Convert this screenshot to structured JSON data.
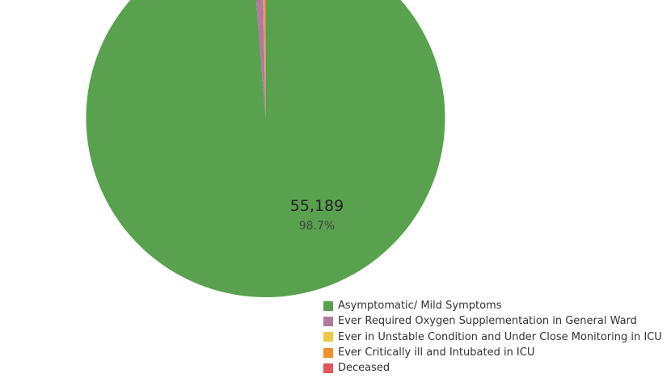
{
  "chart_data": {
    "type": "pie",
    "categories": [
      "Asymptomatic/ Mild Symptoms",
      "Ever Required Oxygen Supplementation in General Ward",
      "Ever in Unstable Condition and Under Close Monitoring in ICU",
      "Ever Critically ill and Intubated in ICU",
      "Deceased"
    ],
    "values": [
      55189,
      540,
      40,
      100,
      47
    ],
    "colors": [
      "#59a14f",
      "#b07aa1",
      "#edc948",
      "#f28e2b",
      "#e15759"
    ],
    "data_labels": [
      {
        "value": "55,189",
        "percent": "98.7%"
      }
    ],
    "legend_position": "bottom-right"
  }
}
